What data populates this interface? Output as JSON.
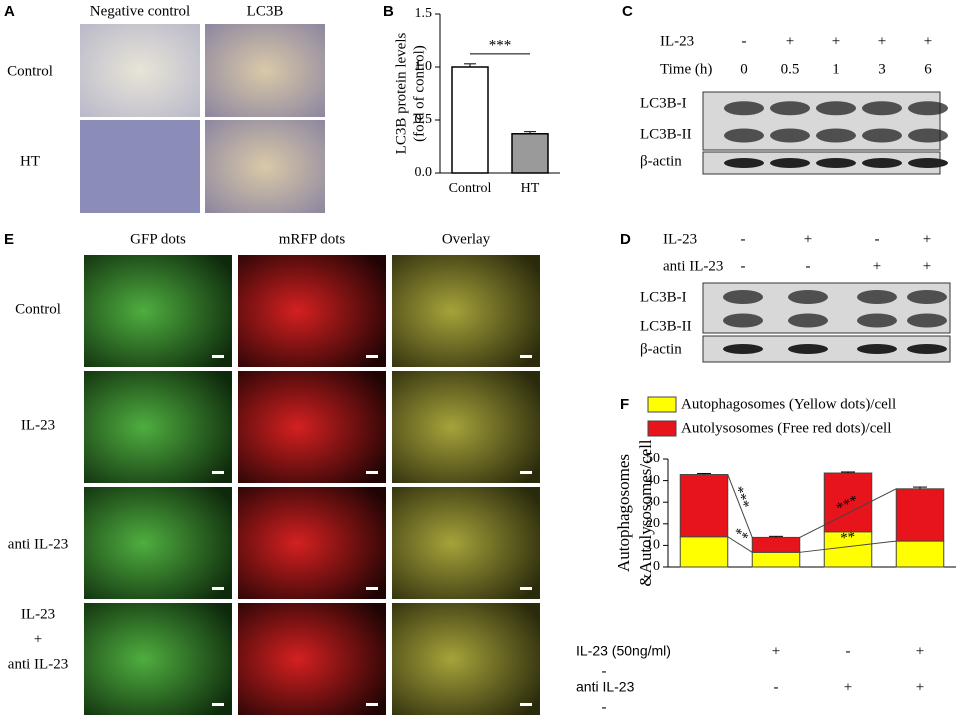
{
  "panels": {
    "A": {
      "label": "A",
      "columns": [
        "Negative control",
        "LC3B"
      ],
      "rows": [
        "Control",
        "HT"
      ]
    },
    "C": {
      "label": "C",
      "conditions": [
        {
          "name": "IL-23",
          "signs": [
            "-",
            "+",
            "+",
            "+",
            "+"
          ]
        },
        {
          "name": "Time (h)",
          "signs": [
            "0",
            "0.5",
            "1",
            "3",
            "6"
          ]
        }
      ],
      "bands": [
        "LC3B-I",
        "LC3B-II",
        "β-actin"
      ]
    },
    "D": {
      "label": "D",
      "conditions": [
        {
          "name": "IL-23",
          "signs": [
            "-",
            "+",
            "-",
            "+"
          ]
        },
        {
          "name": "anti IL-23",
          "signs": [
            "-",
            "-",
            "+",
            "+"
          ]
        }
      ],
      "bands": [
        "LC3B-I",
        "LC3B-II",
        "β-actin"
      ]
    },
    "E": {
      "label": "E",
      "columns": [
        "GFP dots",
        "mRFP dots",
        "Overlay"
      ],
      "rows": [
        [
          "Control"
        ],
        [
          "IL-23"
        ],
        [
          "anti IL-23"
        ],
        [
          "IL-23",
          "+",
          "anti IL-23"
        ]
      ]
    }
  },
  "chart_data": [
    {
      "type": "bar",
      "label": "B",
      "y_label": [
        "LC3B protein levels",
        "(fold of control)"
      ],
      "categories": [
        "Control",
        "HT"
      ],
      "values": [
        1.0,
        0.37
      ],
      "errors": [
        0.03,
        0.02
      ],
      "colors": [
        "#ffffff",
        "#9a9a9a"
      ],
      "ylim": [
        0,
        1.5
      ],
      "yticks": [
        {
          "value": 0,
          "label": "0.0"
        },
        {
          "value": 0.5,
          "label": "0.5"
        },
        {
          "value": 1,
          "label": "1.0"
        },
        {
          "value": 1.5,
          "label": "1.5"
        }
      ],
      "annotations": [
        "***"
      ]
    },
    {
      "type": "stacked_bar",
      "label": "F",
      "y_label": [
        "Autophagosomes",
        "&Autolysosomes/cell"
      ],
      "series": [
        {
          "name": "Autophagosomes (Yellow dots)/cell",
          "color": "#ffff00",
          "values": [
            14,
            6.8,
            16.3,
            12
          ],
          "errors": [
            0.4,
            0.6,
            0.8,
            0.8
          ]
        },
        {
          "name": "Autolysosomes (Free red dots)/cell",
          "color": "#e8141c",
          "values": [
            28.8,
            6.9,
            27.2,
            24.2
          ],
          "errors": [
            0.5,
            0.5,
            0.5,
            0.8
          ]
        }
      ],
      "ylim": [
        0,
        50
      ],
      "yticks": [
        0,
        10,
        20,
        30,
        40,
        50
      ],
      "conditions": [
        {
          "name": "IL-23 (50ng/ml)",
          "signs": [
            "-",
            "+",
            "-",
            "+"
          ]
        },
        {
          "name": "anti IL-23",
          "signs": [
            "-",
            "-",
            "+",
            "+"
          ]
        }
      ],
      "annotations": [
        "***",
        "**",
        "***",
        "**"
      ]
    }
  ]
}
